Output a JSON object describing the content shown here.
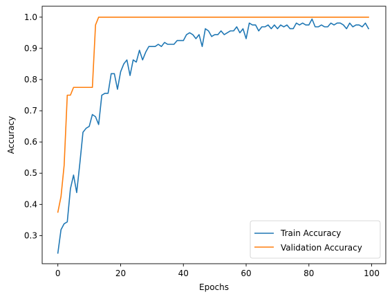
{
  "chart_data": {
    "type": "line",
    "title": "",
    "xlabel": "Epochs",
    "ylabel": "Accuracy",
    "xlim": [
      -5,
      104.5
    ],
    "ylim": [
      0.21,
      1.035
    ],
    "xticks": [
      0,
      20,
      40,
      60,
      80,
      100
    ],
    "yticks": [
      0.3,
      0.4,
      0.5,
      0.6,
      0.7,
      0.8,
      0.9,
      1.0
    ],
    "xtick_labels": [
      "0",
      "20",
      "40",
      "60",
      "80",
      "100"
    ],
    "ytick_labels": [
      "0.3",
      "0.4",
      "0.5",
      "0.6",
      "0.7",
      "0.8",
      "0.9",
      "1.0"
    ],
    "grid": false,
    "legend_position": "lower-right",
    "x": [
      0,
      1,
      2,
      3,
      4,
      5,
      6,
      7,
      8,
      9,
      10,
      11,
      12,
      13,
      14,
      15,
      16,
      17,
      18,
      19,
      20,
      21,
      22,
      23,
      24,
      25,
      26,
      27,
      28,
      29,
      30,
      31,
      32,
      33,
      34,
      35,
      36,
      37,
      38,
      39,
      40,
      41,
      42,
      43,
      44,
      45,
      46,
      47,
      48,
      49,
      50,
      51,
      52,
      53,
      54,
      55,
      56,
      57,
      58,
      59,
      60,
      61,
      62,
      63,
      64,
      65,
      66,
      67,
      68,
      69,
      70,
      71,
      72,
      73,
      74,
      75,
      76,
      77,
      78,
      79,
      80,
      81,
      82,
      83,
      84,
      85,
      86,
      87,
      88,
      89,
      90,
      91,
      92,
      93,
      94,
      95,
      96,
      97,
      98,
      99
    ],
    "series": [
      {
        "name": "Train Accuracy",
        "color": "#1f77b4",
        "values": [
          0.244,
          0.319,
          0.338,
          0.344,
          0.45,
          0.494,
          0.438,
          0.531,
          0.631,
          0.644,
          0.65,
          0.688,
          0.681,
          0.656,
          0.75,
          0.756,
          0.756,
          0.819,
          0.819,
          0.769,
          0.825,
          0.85,
          0.863,
          0.813,
          0.863,
          0.856,
          0.894,
          0.863,
          0.888,
          0.906,
          0.906,
          0.906,
          0.913,
          0.906,
          0.919,
          0.913,
          0.913,
          0.913,
          0.925,
          0.925,
          0.925,
          0.944,
          0.95,
          0.944,
          0.931,
          0.944,
          0.906,
          0.963,
          0.956,
          0.938,
          0.944,
          0.944,
          0.956,
          0.944,
          0.95,
          0.956,
          0.956,
          0.969,
          0.95,
          0.963,
          0.931,
          0.981,
          0.975,
          0.975,
          0.956,
          0.969,
          0.969,
          0.975,
          0.963,
          0.975,
          0.963,
          0.975,
          0.969,
          0.975,
          0.963,
          0.963,
          0.981,
          0.975,
          0.981,
          0.975,
          0.975,
          0.994,
          0.969,
          0.969,
          0.975,
          0.969,
          0.969,
          0.981,
          0.975,
          0.981,
          0.981,
          0.975,
          0.963,
          0.981,
          0.969,
          0.975,
          0.975,
          0.969,
          0.981,
          0.963
        ]
      },
      {
        "name": "Validation Accuracy",
        "color": "#ff7f0e",
        "values": [
          0.375,
          0.425,
          0.525,
          0.75,
          0.75,
          0.775,
          0.775,
          0.775,
          0.775,
          0.775,
          0.775,
          0.775,
          0.975,
          1.0,
          1.0,
          1.0,
          1.0,
          1.0,
          1.0,
          1.0,
          1.0,
          1.0,
          1.0,
          1.0,
          1.0,
          1.0,
          1.0,
          1.0,
          1.0,
          1.0,
          1.0,
          1.0,
          1.0,
          1.0,
          1.0,
          1.0,
          1.0,
          1.0,
          1.0,
          1.0,
          1.0,
          1.0,
          1.0,
          1.0,
          1.0,
          1.0,
          1.0,
          1.0,
          1.0,
          1.0,
          1.0,
          1.0,
          1.0,
          1.0,
          1.0,
          1.0,
          1.0,
          1.0,
          1.0,
          1.0,
          1.0,
          1.0,
          1.0,
          1.0,
          1.0,
          1.0,
          1.0,
          1.0,
          1.0,
          1.0,
          1.0,
          1.0,
          1.0,
          1.0,
          1.0,
          1.0,
          1.0,
          1.0,
          1.0,
          1.0,
          1.0,
          1.0,
          1.0,
          1.0,
          1.0,
          1.0,
          1.0,
          1.0,
          1.0,
          1.0,
          1.0,
          1.0,
          1.0,
          1.0,
          1.0,
          1.0,
          1.0,
          1.0,
          1.0,
          1.0
        ]
      }
    ]
  }
}
